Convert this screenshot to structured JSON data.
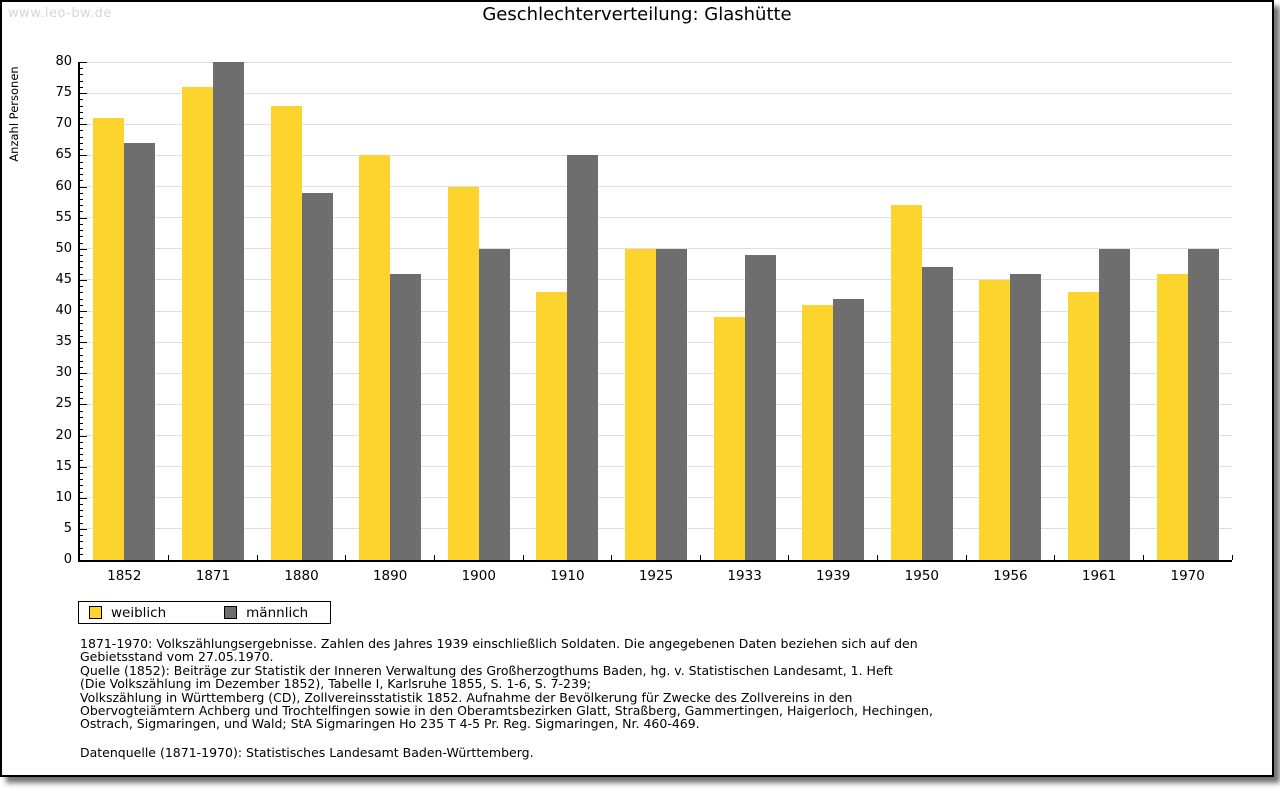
{
  "watermark": "www.leo-bw.de",
  "chart_data": {
    "type": "bar",
    "title": "Geschlechterverteilung: Glashütte",
    "ylabel": "Anzahl Personen",
    "xlabel": "",
    "categories": [
      "1852",
      "1871",
      "1880",
      "1890",
      "1900",
      "1910",
      "1925",
      "1933",
      "1939",
      "1950",
      "1956",
      "1961",
      "1970"
    ],
    "series": [
      {
        "name": "weiblich",
        "color": "#FCD42D",
        "values": [
          71,
          76,
          73,
          65,
          60,
          43,
          50,
          39,
          41,
          57,
          45,
          43,
          46
        ]
      },
      {
        "name": "männlich",
        "color": "#6E6E6E",
        "values": [
          67,
          80,
          59,
          46,
          50,
          65,
          50,
          49,
          42,
          47,
          46,
          50,
          50
        ]
      }
    ],
    "ylim": [
      0,
      80
    ],
    "ytick_step": 5,
    "minor_tick_step": 1,
    "grid": true,
    "legend_position": "bottom-left"
  },
  "footnote": "1871-1970: Volkszählungsergebnisse. Zahlen des Jahres 1939 einschließlich Soldaten. Die angegebenen Daten beziehen sich auf den\nGebietsstand vom 27.05.1970.\nQuelle (1852): Beiträge zur Statistik der Inneren Verwaltung des Großherzogthums Baden, hg. v. Statistischen Landesamt, 1. Heft\n(Die Volkszählung im Dezember 1852), Tabelle I, Karlsruhe 1855, S. 1-6, S. 7-239;\nVolkszählung in Württemberg (CD), Zollvereinsstatistik 1852. Aufnahme der Bevölkerung für Zwecke des Zollvereins in den\nObervogteiämtern Achberg und Trochtelfingen sowie in den Oberamtsbezirken Glatt, Straßberg, Gammertingen, Haigerloch, Hechingen,\nOstrach, Sigmaringen, und Wald; StA Sigmaringen Ho 235 T 4-5 Pr. Reg. Sigmaringen, Nr. 460-469.",
  "datasource": "Datenquelle (1871-1970): Statistisches Landesamt Baden-Württemberg."
}
